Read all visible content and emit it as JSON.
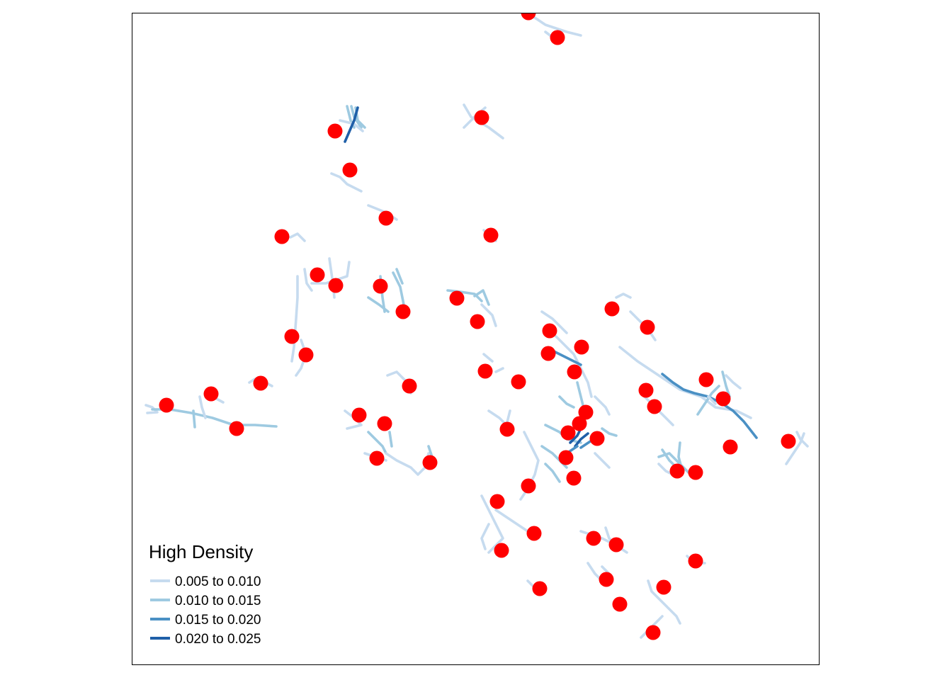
{
  "legend": {
    "title": "High Density",
    "classes": [
      {
        "label": "0.005 to 0.010",
        "color": "#c6dbef"
      },
      {
        "label": "0.010 to 0.015",
        "color": "#9ecae1"
      },
      {
        "label": "0.015 to 0.020",
        "color": "#4a90c4"
      },
      {
        "label": "0.020 to 0.025",
        "color": "#1f5fa8"
      }
    ]
  },
  "colors": {
    "point": "#ff0000",
    "frame": "#000000",
    "background": "#ffffff"
  }
}
